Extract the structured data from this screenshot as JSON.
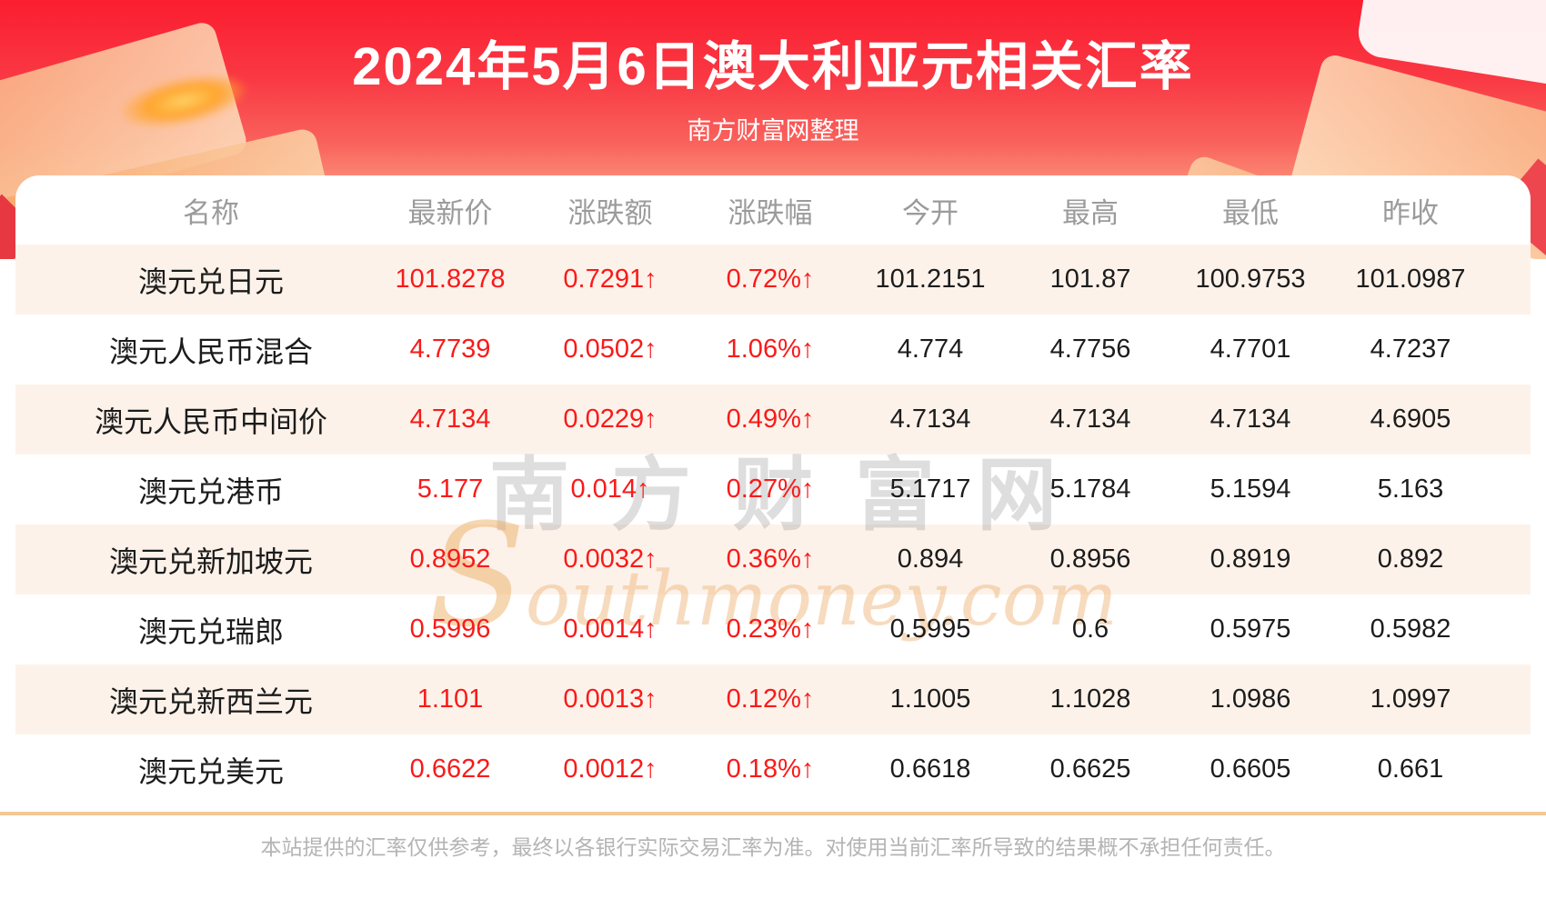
{
  "chart_data": {
    "type": "table",
    "title": "2024年5月6日澳大利亚元相关汇率",
    "subtitle": "南方财富网整理",
    "columns": [
      "名称",
      "最新价",
      "涨跌额",
      "涨跌幅",
      "今开",
      "最高",
      "最低",
      "昨收"
    ],
    "rows": [
      {
        "name": "澳元兑日元",
        "latest": "101.8278",
        "change": "0.7291↑",
        "pct": "0.72%↑",
        "open": "101.2151",
        "high": "101.87",
        "low": "100.9753",
        "prev": "101.0987"
      },
      {
        "name": "澳元人民币混合",
        "latest": "4.7739",
        "change": "0.0502↑",
        "pct": "1.06%↑",
        "open": "4.774",
        "high": "4.7756",
        "low": "4.7701",
        "prev": "4.7237"
      },
      {
        "name": "澳元人民币中间价",
        "latest": "4.7134",
        "change": "0.0229↑",
        "pct": "0.49%↑",
        "open": "4.7134",
        "high": "4.7134",
        "low": "4.7134",
        "prev": "4.6905"
      },
      {
        "name": "澳元兑港币",
        "latest": "5.177",
        "change": "0.014↑",
        "pct": "0.27%↑",
        "open": "5.1717",
        "high": "5.1784",
        "low": "5.1594",
        "prev": "5.163"
      },
      {
        "name": "澳元兑新加坡元",
        "latest": "0.8952",
        "change": "0.0032↑",
        "pct": "0.36%↑",
        "open": "0.894",
        "high": "0.8956",
        "low": "0.8919",
        "prev": "0.892"
      },
      {
        "name": "澳元兑瑞郎",
        "latest": "0.5996",
        "change": "0.0014↑",
        "pct": "0.23%↑",
        "open": "0.5995",
        "high": "0.6",
        "low": "0.5975",
        "prev": "0.5982"
      },
      {
        "name": "澳元兑新西兰元",
        "latest": "1.101",
        "change": "0.0013↑",
        "pct": "0.12%↑",
        "open": "1.1005",
        "high": "1.1028",
        "low": "1.0986",
        "prev": "1.0997"
      },
      {
        "name": "澳元兑美元",
        "latest": "0.6622",
        "change": "0.0012↑",
        "pct": "0.18%↑",
        "open": "0.6618",
        "high": "0.6625",
        "low": "0.6605",
        "prev": "0.661"
      }
    ]
  },
  "watermark": {
    "cn": "南方财富网",
    "en": "Southmoney.com"
  },
  "footer": {
    "disclaimer": "本站提供的汇率仅供参考，最终以各银行实际交易汇率为准。对使用当前汇率所导致的结果概不承担任何责任。"
  },
  "colors": {
    "banner_red": "#fb1d30",
    "accent_red": "#f91a1a",
    "stripe": "#fdf2ea",
    "divider": "#f4c795",
    "header_gray": "#9b9b9b"
  }
}
